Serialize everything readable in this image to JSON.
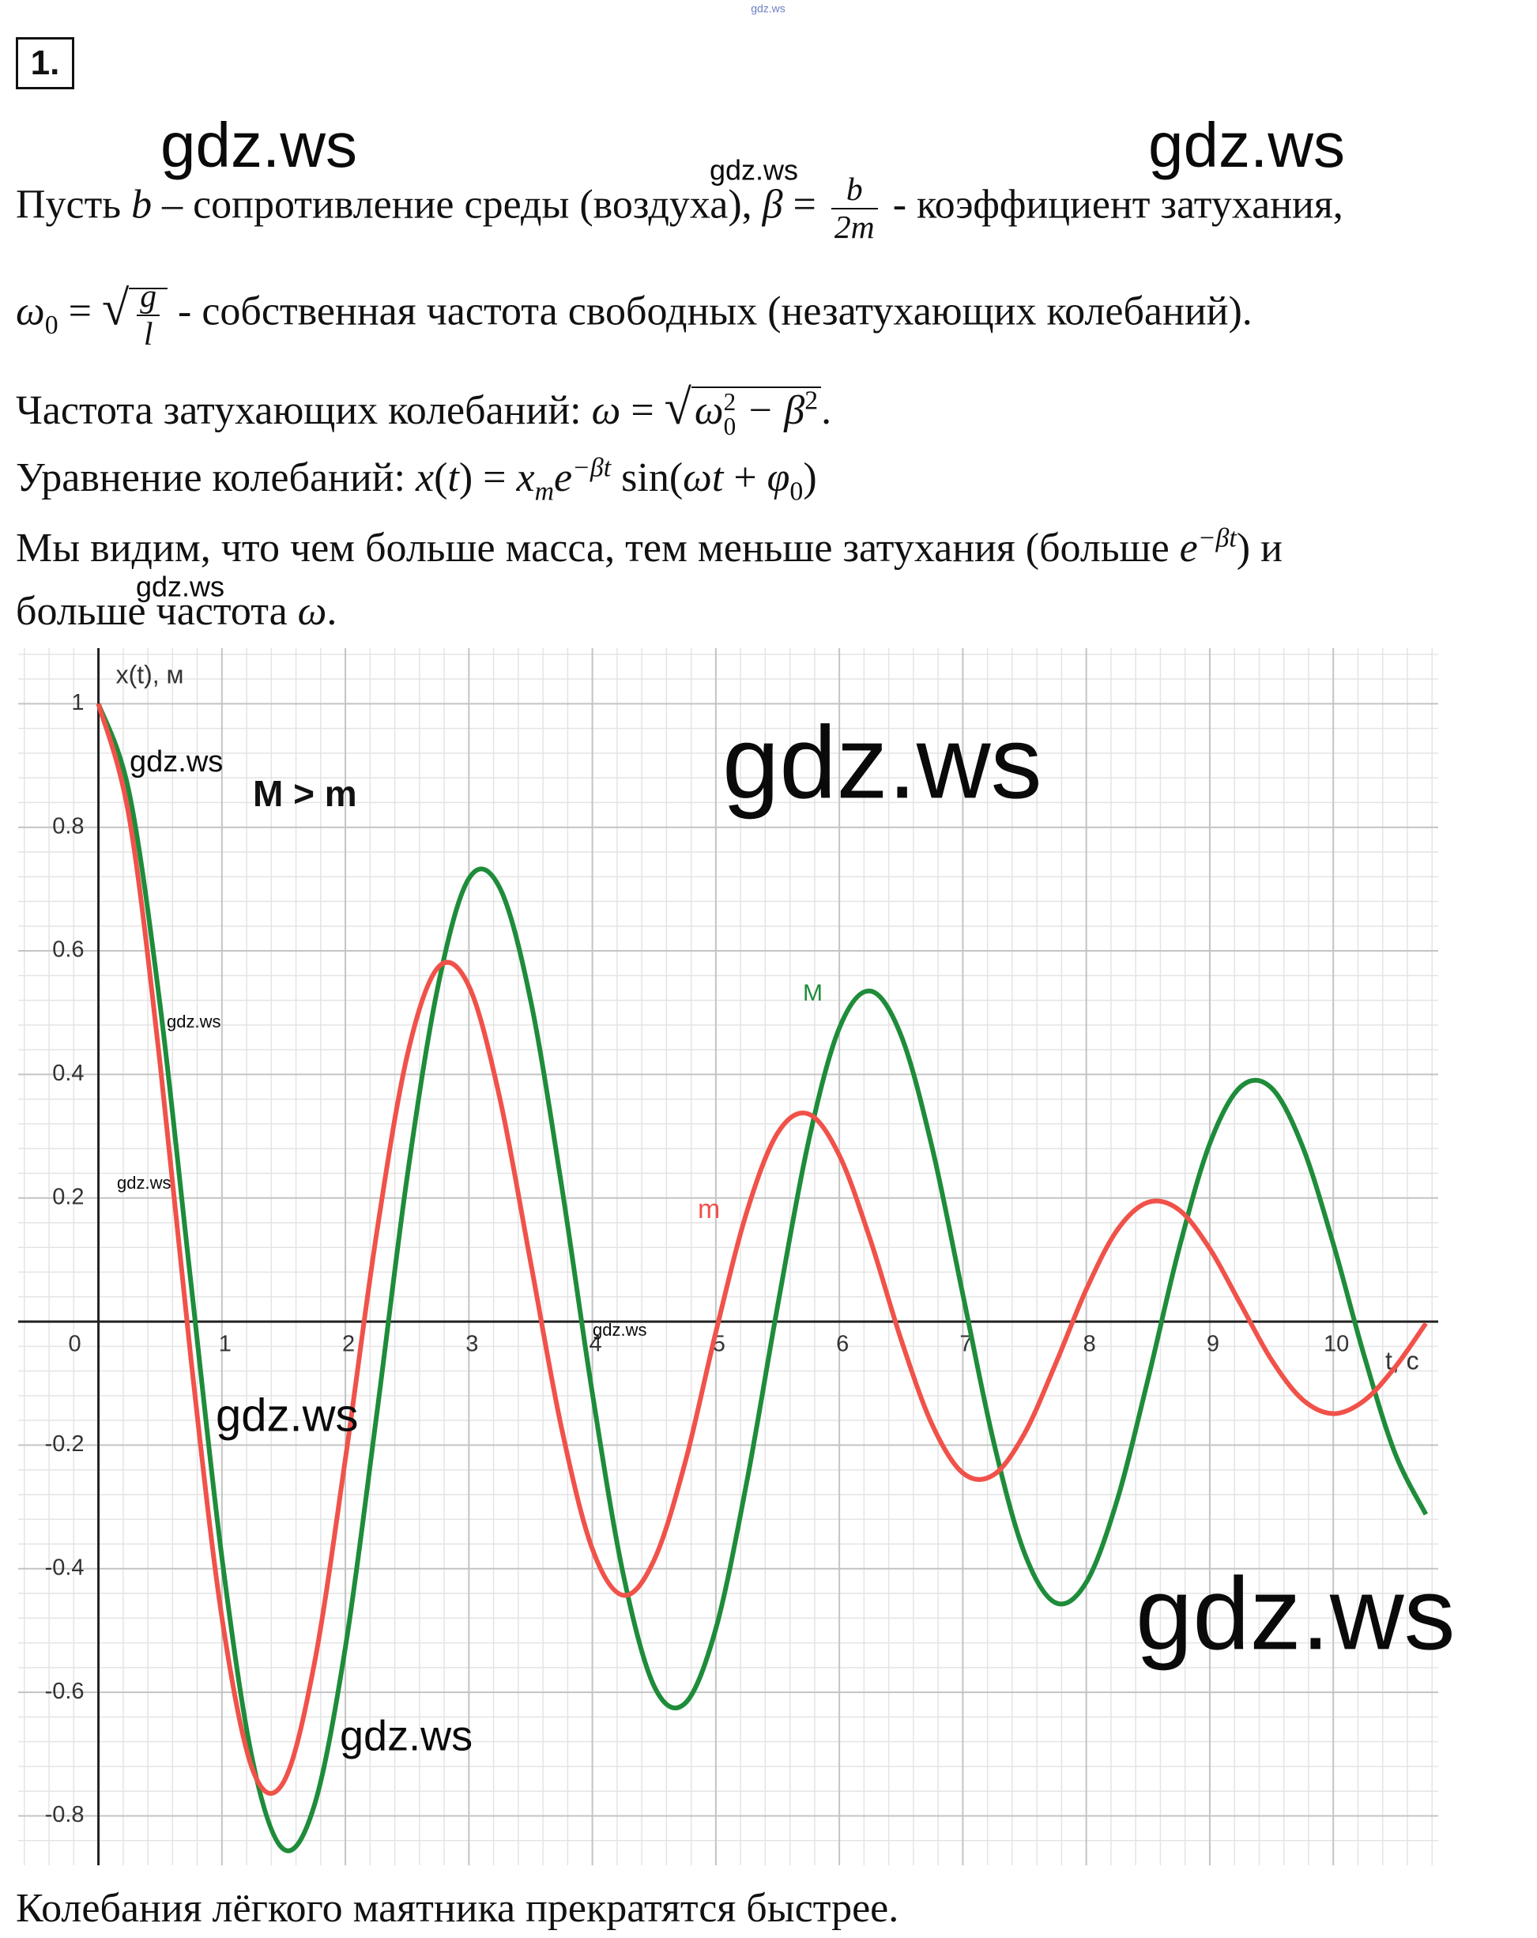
{
  "document": {
    "number": "1.",
    "lines": [
      [
        "Пусть ",
        "b",
        " – сопротивление среды (воздуха), ",
        "β",
        " = ",
        "b",
        "2m",
        " - коэффициент затухания,"
      ],
      [
        "ω",
        "0",
        " = ",
        "g",
        "l",
        " - собственная частота свободных (незатухающих колебаний)."
      ],
      [
        "Частота затухающих колебаний: ",
        "ω",
        " = ",
        "ω",
        "2",
        "0",
        " − β",
        "2",
        "."
      ],
      [
        "Уравнение колебаний: ",
        "x",
        "(",
        "t",
        ") = ",
        "x",
        "m",
        "e",
        "−βt",
        " sin(",
        "ωt",
        " + ",
        "φ",
        "0",
        ")"
      ],
      [
        "Мы видим, что чем больше масса, тем меньше затухания (больше ",
        "e",
        "−βt",
        ") и"
      ],
      [
        "больше частота ",
        "ω",
        "."
      ]
    ],
    "footer": "Колебания лёгкого маятника прекратятся быстрее."
  },
  "watermarks": [
    "gdz.ws",
    "gdz.ws",
    "gdz.ws",
    "gdz.ws",
    "gdz.ws",
    "gdz.ws",
    "gdz.ws",
    "gdz.ws",
    "gdz.ws",
    "gdz.ws",
    "gdz.ws",
    "gdz.ws",
    "gdz.ws"
  ],
  "chart_data": {
    "type": "line",
    "xlabel": "t, с",
    "ylabel": "x(t), м",
    "annotations": [
      "M > m"
    ],
    "x": [
      0,
      0.25,
      0.5,
      0.75,
      1,
      1.25,
      1.5,
      1.75,
      2,
      2.25,
      2.5,
      2.75,
      3,
      3.25,
      3.5,
      3.75,
      4,
      4.25,
      4.5,
      4.75,
      5,
      5.25,
      5.5,
      5.75,
      6,
      6.25,
      6.5,
      6.75,
      7,
      7.25,
      7.5,
      7.75,
      8,
      8.25,
      8.5,
      8.75,
      9,
      9.25,
      9.5,
      9.75,
      10,
      10.25,
      10.5,
      10.75
    ],
    "series": [
      {
        "name": "M",
        "color": "#1e8c3a",
        "values": [
          1,
          0.855,
          0.511,
          0.061,
          -0.382,
          -0.712,
          -0.854,
          -0.782,
          -0.527,
          -0.156,
          0.234,
          0.543,
          0.717,
          0.702,
          0.52,
          0.221,
          -0.116,
          -0.409,
          -0.59,
          -0.618,
          -0.497,
          -0.26,
          0.025,
          0.291,
          0.475,
          0.535,
          0.463,
          0.283,
          0.044,
          -0.195,
          -0.375,
          -0.455,
          -0.422,
          -0.289,
          -0.093,
          0.117,
          0.288,
          0.38,
          0.378,
          0.284,
          0.126,
          -0.055,
          -0.213,
          -0.312
        ]
      },
      {
        "name": "m",
        "color": "#f0524a",
        "values": [
          1,
          0.815,
          0.416,
          -0.062,
          -0.479,
          -0.726,
          -0.745,
          -0.552,
          -0.222,
          0.139,
          0.43,
          0.573,
          0.543,
          0.362,
          0.096,
          -0.172,
          -0.368,
          -0.443,
          -0.386,
          -0.229,
          -0.017,
          0.177,
          0.305,
          0.336,
          0.269,
          0.133,
          -0.029,
          -0.166,
          -0.245,
          -0.248,
          -0.181,
          -0.069,
          0.052,
          0.148,
          0.193,
          0.181,
          0.118,
          0.028,
          -0.062,
          -0.126,
          -0.149,
          -0.128,
          -0.074,
          -0.003
        ]
      }
    ],
    "xlim": [
      -0.65,
      10.85
    ],
    "ylim": [
      -0.88,
      1.09
    ],
    "xticks": [
      0,
      1,
      2,
      3,
      4,
      5,
      6,
      7,
      8,
      9,
      10
    ],
    "yticks": [
      -0.8,
      -0.6,
      -0.4,
      -0.2,
      0.2,
      0.4,
      0.6,
      0.8,
      1
    ],
    "grid": true
  }
}
